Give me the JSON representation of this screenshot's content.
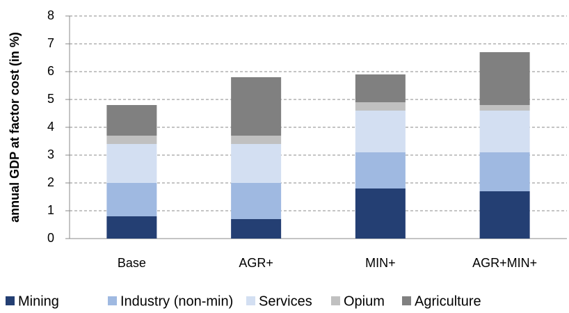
{
  "chart_data": {
    "type": "stacked_bar",
    "ylabel": "annual GDP at factor cost (in %)",
    "categories": [
      "Base",
      "AGR+",
      "MIN+",
      "AGR+MIN+"
    ],
    "series": [
      {
        "name": "Mining",
        "color": "#243f73",
        "values": [
          0.8,
          0.7,
          1.8,
          1.7
        ]
      },
      {
        "name": "Industry (non-min)",
        "color": "#9fb9e1",
        "values": [
          1.2,
          1.3,
          1.3,
          1.4
        ]
      },
      {
        "name": "Services",
        "color": "#d3dff2",
        "values": [
          1.4,
          1.4,
          1.5,
          1.5
        ]
      },
      {
        "name": "Opium",
        "color": "#c0c0c0",
        "values": [
          0.3,
          0.3,
          0.3,
          0.2
        ]
      },
      {
        "name": "Agriculture",
        "color": "#808080",
        "values": [
          1.1,
          2.1,
          1.0,
          1.9
        ]
      }
    ],
    "ylim": [
      0,
      8
    ],
    "yticks": [
      0,
      1,
      2,
      3,
      4,
      5,
      6,
      7,
      8
    ],
    "grid": true,
    "legend": "bottom"
  }
}
